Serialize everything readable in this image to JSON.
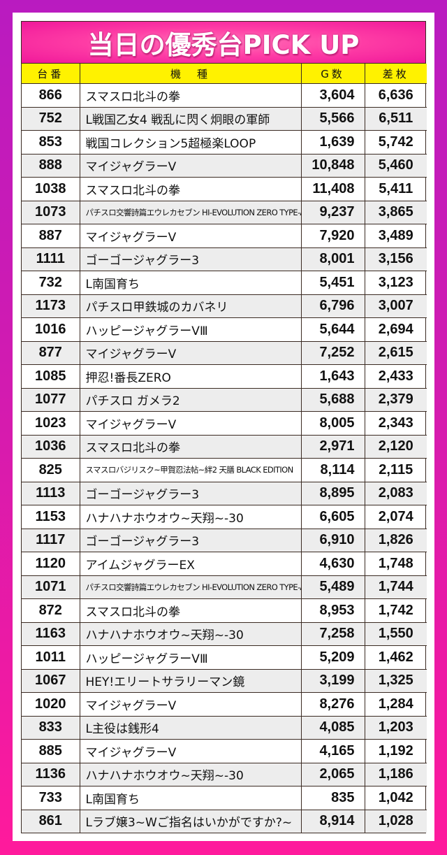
{
  "title": "当日の優秀台PICK UP",
  "colors": {
    "background_top": "#b91bc0",
    "background_bottom": "#ff1a9c",
    "title_band": "#f0189a",
    "header_bg": "#fff200",
    "row_alt": "#ededed",
    "border": "#3a2a22"
  },
  "table": {
    "headers": [
      "台番",
      "機　種",
      "G数",
      "差枚"
    ],
    "rows": [
      {
        "no": "866",
        "machine": "スマスロ北斗の拳",
        "games": "3,604",
        "diff": "6,636"
      },
      {
        "no": "752",
        "machine": "L戦国乙女4 戦乱に閃く炯眼の軍師",
        "games": "5,566",
        "diff": "6,511"
      },
      {
        "no": "853",
        "machine": "戦国コレクション5超極楽LOOP",
        "games": "1,639",
        "diff": "5,742"
      },
      {
        "no": "888",
        "machine": "マイジャグラーV",
        "games": "10,848",
        "diff": "5,460"
      },
      {
        "no": "1038",
        "machine": "スマスロ北斗の拳",
        "games": "11,408",
        "diff": "5,411"
      },
      {
        "no": "1073",
        "machine": "パチスロ交響詩篇エウレカセブン HI-EVOLUTION ZERO TYPE-ART",
        "games": "9,237",
        "diff": "3,865"
      },
      {
        "no": "887",
        "machine": "マイジャグラーV",
        "games": "7,920",
        "diff": "3,489"
      },
      {
        "no": "1111",
        "machine": "ゴーゴージャグラー3",
        "games": "8,001",
        "diff": "3,156"
      },
      {
        "no": "732",
        "machine": "L南国育ち",
        "games": "5,451",
        "diff": "3,123"
      },
      {
        "no": "1173",
        "machine": "パチスロ甲鉄城のカバネリ",
        "games": "6,796",
        "diff": "3,007"
      },
      {
        "no": "1016",
        "machine": "ハッピージャグラーVⅢ",
        "games": "5,644",
        "diff": "2,694"
      },
      {
        "no": "877",
        "machine": "マイジャグラーV",
        "games": "7,252",
        "diff": "2,615"
      },
      {
        "no": "1085",
        "machine": "押忍!番長ZERO",
        "games": "1,643",
        "diff": "2,433"
      },
      {
        "no": "1077",
        "machine": "パチスロ ガメラ2",
        "games": "5,688",
        "diff": "2,379"
      },
      {
        "no": "1023",
        "machine": "マイジャグラーV",
        "games": "8,005",
        "diff": "2,343"
      },
      {
        "no": "1036",
        "machine": "スマスロ北斗の拳",
        "games": "2,971",
        "diff": "2,120"
      },
      {
        "no": "825",
        "machine": "スマスロバジリスク~甲賀忍法帖~絆2 天膳 BLACK EDITION",
        "games": "8,114",
        "diff": "2,115"
      },
      {
        "no": "1113",
        "machine": "ゴーゴージャグラー3",
        "games": "8,895",
        "diff": "2,083"
      },
      {
        "no": "1153",
        "machine": "ハナハナホウオウ~天翔~-30",
        "games": "6,605",
        "diff": "2,074"
      },
      {
        "no": "1117",
        "machine": "ゴーゴージャグラー3",
        "games": "6,910",
        "diff": "1,826"
      },
      {
        "no": "1120",
        "machine": "アイムジャグラーEX",
        "games": "4,630",
        "diff": "1,748"
      },
      {
        "no": "1071",
        "machine": "パチスロ交響詩篇エウレカセブン HI-EVOLUTION ZERO TYPE-ART",
        "games": "5,489",
        "diff": "1,744"
      },
      {
        "no": "872",
        "machine": "スマスロ北斗の拳",
        "games": "8,953",
        "diff": "1,742"
      },
      {
        "no": "1163",
        "machine": "ハナハナホウオウ~天翔~-30",
        "games": "7,258",
        "diff": "1,550"
      },
      {
        "no": "1011",
        "machine": "ハッピージャグラーVⅢ",
        "games": "5,209",
        "diff": "1,462"
      },
      {
        "no": "1067",
        "machine": "HEY!エリートサラリーマン鏡",
        "games": "3,199",
        "diff": "1,325"
      },
      {
        "no": "1020",
        "machine": "マイジャグラーV",
        "games": "8,276",
        "diff": "1,284"
      },
      {
        "no": "833",
        "machine": "L主役は銭形4",
        "games": "4,085",
        "diff": "1,203"
      },
      {
        "no": "885",
        "machine": "マイジャグラーV",
        "games": "4,165",
        "diff": "1,192"
      },
      {
        "no": "1136",
        "machine": "ハナハナホウオウ~天翔~-30",
        "games": "2,065",
        "diff": "1,186"
      },
      {
        "no": "733",
        "machine": "L南国育ち",
        "games": "835",
        "diff": "1,042"
      },
      {
        "no": "861",
        "machine": "Lラブ嬢3~Wご指名はいかがですか?~",
        "games": "8,914",
        "diff": "1,028"
      }
    ]
  }
}
